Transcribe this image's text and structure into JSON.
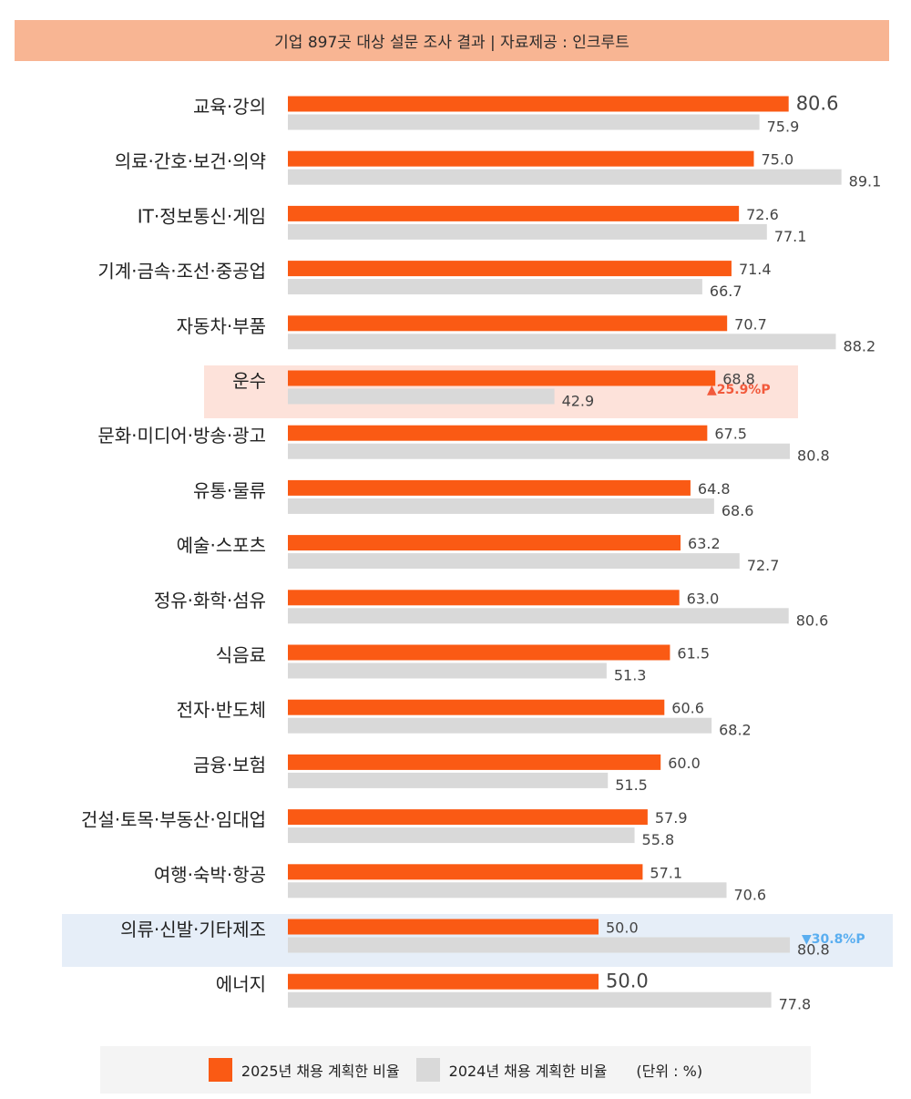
{
  "header": {
    "title": "기업 897곳 대상 설문 조사 결과 | 자료제공 : 인크루트"
  },
  "legend": {
    "series_2025": "2025년 채용 계획한 비율",
    "series_2024": "2024년 채용 계획한 비율",
    "unit": "(단위 : %)"
  },
  "colors": {
    "s2025": "#fa5a14",
    "s2024": "#d9d9d9",
    "highlight_up": "#fde2da",
    "highlight_down": "#e6eef8",
    "up": "#f25a3c",
    "down": "#5aaef0"
  },
  "chart_data": {
    "type": "bar",
    "orientation": "horizontal",
    "categories": [
      "교육·강의",
      "의료·간호·보건·의약",
      "IT·정보통신·게임",
      "기계·금속·조선·중공업",
      "자동차·부품",
      "운수",
      "문화·미디어·방송·광고",
      "유통·물류",
      "예술·스포츠",
      "정유·화학·섬유",
      "식음료",
      "전자·반도체",
      "금융·보험",
      "건설·토목·부동산·임대업",
      "여행·숙박·항공",
      "의류·신발·기타제조",
      "에너지"
    ],
    "series": [
      {
        "name": "2025년 채용 계획한 비율",
        "values": [
          80.6,
          75.0,
          72.6,
          71.4,
          70.7,
          68.8,
          67.5,
          64.8,
          63.2,
          63.0,
          61.5,
          60.6,
          60.0,
          57.9,
          57.1,
          50.0,
          50.0
        ]
      },
      {
        "name": "2024년 채용 계획한 비율",
        "values": [
          75.9,
          89.1,
          77.1,
          66.7,
          88.2,
          42.9,
          80.8,
          68.6,
          72.7,
          80.6,
          51.3,
          68.2,
          51.5,
          55.8,
          70.6,
          80.8,
          77.8
        ]
      }
    ],
    "value_labels_2025": [
      "80.6",
      "75.0",
      "72.6",
      "71.4",
      "70.7",
      "68.8",
      "67.5",
      "64.8",
      "63.2",
      "63.0",
      "61.5",
      "60.6",
      "60.0",
      "57.9",
      "57.1",
      "50.0",
      "50.0"
    ],
    "value_labels_2024": [
      "75.9",
      "89.1",
      "77.1",
      "66.7",
      "88.2",
      "42.9",
      "80.8",
      "68.6",
      "72.7",
      "80.6",
      "51.3",
      "68.2",
      "51.5",
      "55.8",
      "70.6",
      "80.8",
      "77.8"
    ],
    "annotations": [
      {
        "category": "운수",
        "text": "▲25.9%P",
        "direction": "up"
      },
      {
        "category": "의류·신발·기타제조",
        "text": "▼30.8%P",
        "direction": "down"
      }
    ],
    "xlim": [
      0,
      100
    ],
    "unit": "(단위 : %)"
  }
}
